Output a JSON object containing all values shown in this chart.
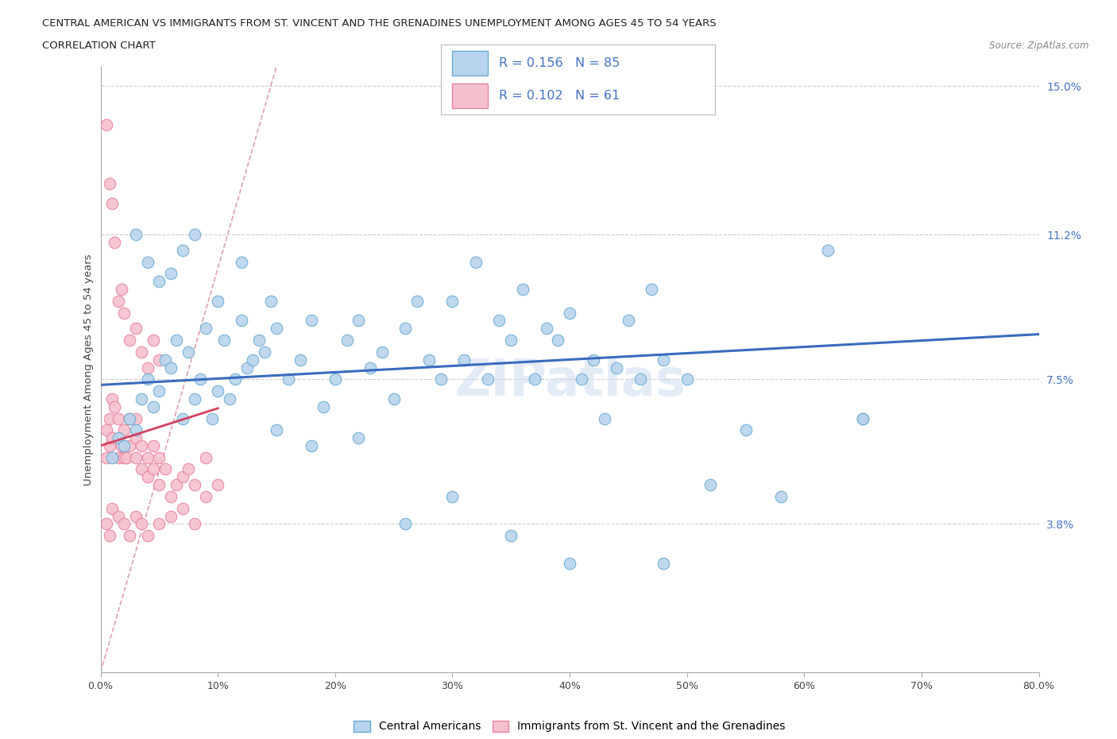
{
  "title_line1": "CENTRAL AMERICAN VS IMMIGRANTS FROM ST. VINCENT AND THE GRENADINES UNEMPLOYMENT AMONG AGES 45 TO 54 YEARS",
  "title_line2": "CORRELATION CHART",
  "source_text": "Source: ZipAtlas.com",
  "ylabel": "Unemployment Among Ages 45 to 54 years",
  "blue_R": 0.156,
  "blue_N": 85,
  "pink_R": 0.102,
  "pink_N": 61,
  "blue_color": "#b8d4ec",
  "blue_edge": "#6aaad4",
  "pink_color": "#f5c0ce",
  "pink_edge": "#e882a0",
  "blue_line_color": "#3a6bbf",
  "pink_line_color": "#d44060",
  "diag_color": "#ddaaaa",
  "legend_label_blue": "Central Americans",
  "legend_label_pink": "Immigrants from St. Vincent and the Grenadines",
  "blue_x": [
    1.0,
    1.5,
    2.0,
    2.5,
    3.0,
    3.5,
    4.0,
    4.5,
    5.0,
    5.5,
    6.0,
    6.5,
    7.0,
    7.5,
    8.0,
    8.5,
    9.0,
    9.5,
    10.0,
    10.5,
    11.0,
    11.5,
    12.0,
    12.5,
    13.0,
    13.5,
    14.0,
    14.5,
    15.0,
    16.0,
    17.0,
    18.0,
    19.0,
    20.0,
    21.0,
    22.0,
    23.0,
    24.0,
    25.0,
    26.0,
    27.0,
    28.0,
    29.0,
    30.0,
    31.0,
    32.0,
    33.0,
    34.0,
    35.0,
    36.0,
    37.0,
    38.0,
    39.0,
    40.0,
    41.0,
    42.0,
    43.0,
    44.0,
    45.0,
    46.0,
    47.0,
    48.0,
    50.0,
    52.0,
    55.0,
    58.0,
    62.0,
    65.0,
    3.0,
    4.0,
    5.0,
    6.0,
    7.0,
    8.0,
    10.0,
    12.0,
    15.0,
    18.0,
    22.0,
    26.0,
    30.0,
    35.0,
    40.0,
    48.0,
    65.0
  ],
  "blue_y": [
    5.5,
    6.0,
    5.8,
    6.5,
    6.2,
    7.0,
    7.5,
    6.8,
    7.2,
    8.0,
    7.8,
    8.5,
    6.5,
    8.2,
    7.0,
    7.5,
    8.8,
    6.5,
    7.2,
    8.5,
    7.0,
    7.5,
    9.0,
    7.8,
    8.0,
    8.5,
    8.2,
    9.5,
    8.8,
    7.5,
    8.0,
    9.0,
    6.8,
    7.5,
    8.5,
    9.0,
    7.8,
    8.2,
    7.0,
    8.8,
    9.5,
    8.0,
    7.5,
    9.5,
    8.0,
    10.5,
    7.5,
    9.0,
    8.5,
    9.8,
    7.5,
    8.8,
    8.5,
    9.2,
    7.5,
    8.0,
    6.5,
    7.8,
    9.0,
    7.5,
    9.8,
    8.0,
    7.5,
    4.8,
    6.2,
    4.5,
    10.8,
    6.5,
    11.2,
    10.5,
    10.0,
    10.2,
    10.8,
    11.2,
    9.5,
    10.5,
    6.2,
    5.8,
    6.0,
    3.8,
    4.5,
    3.5,
    2.8,
    2.8,
    6.5
  ],
  "pink_x": [
    0.5,
    0.5,
    0.8,
    0.8,
    1.0,
    1.0,
    1.2,
    1.5,
    1.5,
    1.8,
    2.0,
    2.0,
    2.2,
    2.5,
    2.5,
    3.0,
    3.0,
    3.0,
    3.5,
    3.5,
    4.0,
    4.0,
    4.5,
    4.5,
    5.0,
    5.0,
    5.5,
    6.0,
    6.5,
    7.0,
    7.5,
    8.0,
    9.0,
    0.5,
    0.8,
    1.0,
    1.2,
    1.5,
    1.8,
    2.0,
    2.5,
    3.0,
    3.5,
    4.0,
    4.5,
    5.0,
    0.5,
    0.8,
    1.0,
    1.5,
    2.0,
    2.5,
    3.0,
    3.5,
    4.0,
    5.0,
    6.0,
    7.0,
    8.0,
    9.0,
    10.0
  ],
  "pink_y": [
    5.5,
    6.2,
    5.8,
    6.5,
    6.0,
    7.0,
    6.8,
    5.5,
    6.5,
    5.8,
    5.5,
    6.2,
    5.5,
    5.8,
    6.5,
    5.5,
    6.0,
    6.5,
    5.2,
    5.8,
    5.0,
    5.5,
    5.2,
    5.8,
    5.5,
    4.8,
    5.2,
    4.5,
    4.8,
    5.0,
    5.2,
    4.8,
    5.5,
    14.0,
    12.5,
    12.0,
    11.0,
    9.5,
    9.8,
    9.2,
    8.5,
    8.8,
    8.2,
    7.8,
    8.5,
    8.0,
    3.8,
    3.5,
    4.2,
    4.0,
    3.8,
    3.5,
    4.0,
    3.8,
    3.5,
    3.8,
    4.0,
    4.2,
    3.8,
    4.5,
    4.8
  ]
}
